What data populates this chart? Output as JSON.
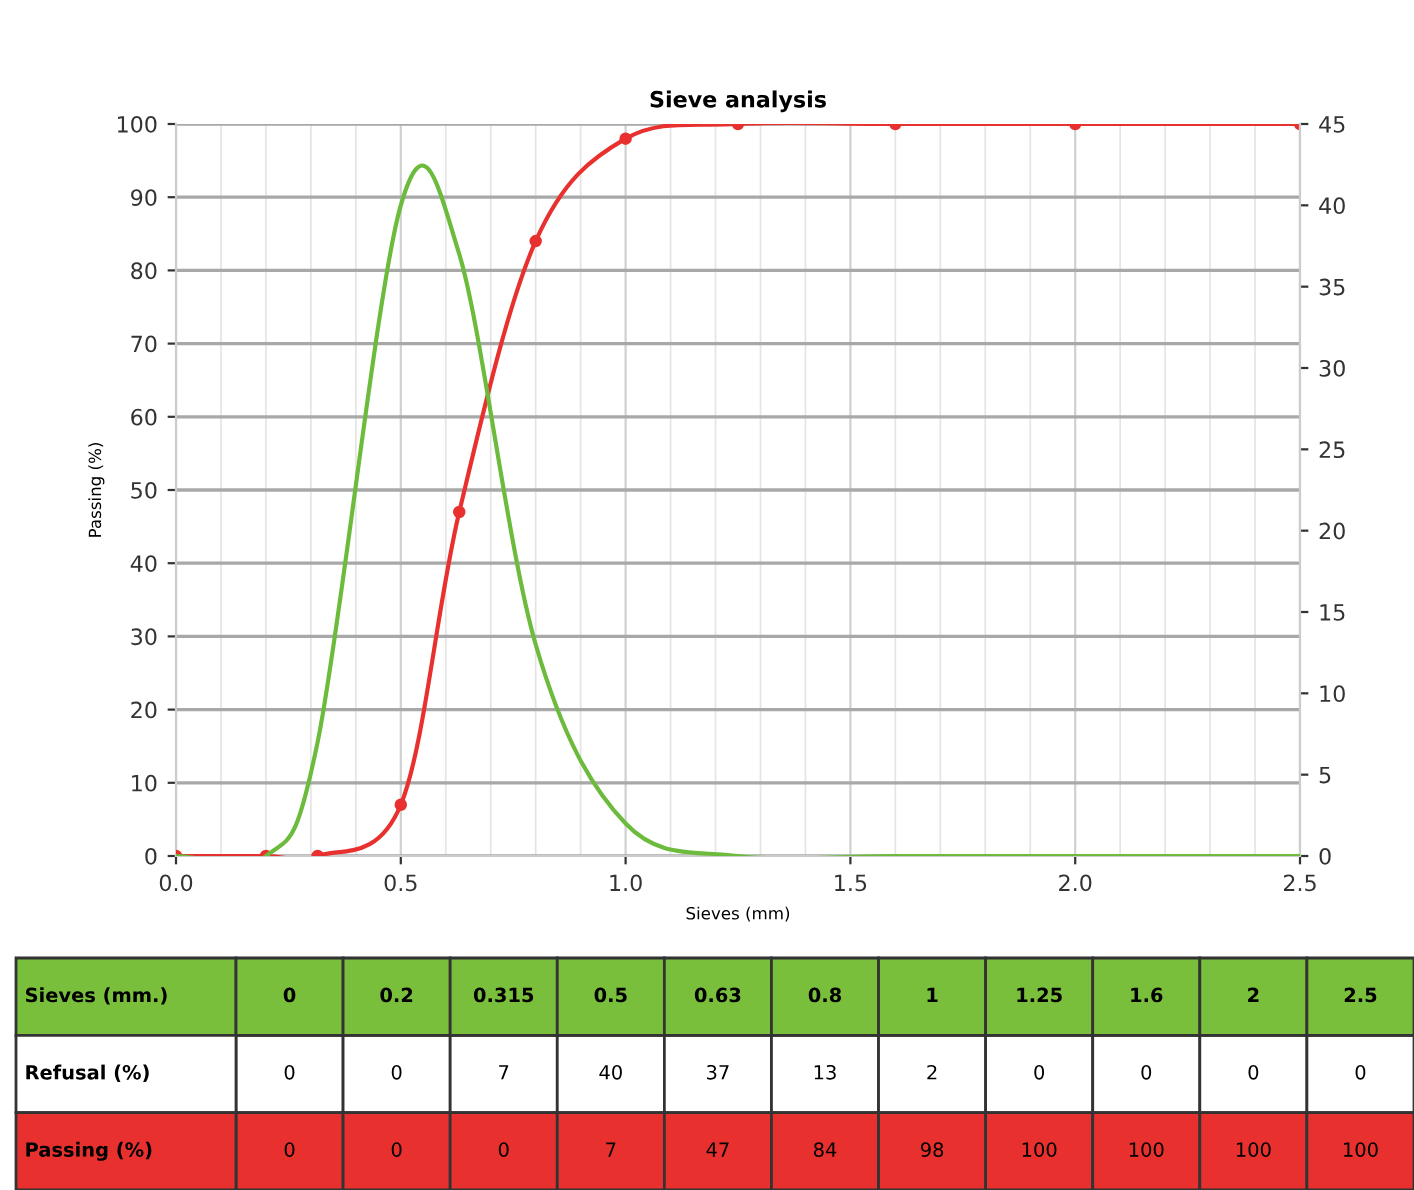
{
  "chart_data": [
    {
      "type": "line",
      "title": "Sieve analysis",
      "xlabel": "Sieves (mm)",
      "ylabel": "Passing (%)",
      "x": [
        0,
        0.2,
        0.315,
        0.5,
        0.63,
        0.8,
        1,
        1.25,
        1.6,
        2,
        2.5
      ],
      "series": [
        {
          "color": "#6cbb3c",
          "axis": "y2",
          "marker": "none",
          "values": [
            0,
            0,
            7,
            40,
            37,
            13,
            2,
            0,
            0,
            0,
            0
          ]
        },
        {
          "color": "#e8312f",
          "marker": "circle",
          "values": [
            0,
            0,
            0,
            7,
            47,
            84,
            98,
            100,
            100,
            100,
            100
          ]
        }
      ],
      "xlim": [
        0,
        2.5
      ],
      "xticks": [
        {
          "value": 0,
          "label": "0.0"
        },
        0.5,
        {
          "value": 1,
          "label": "1.0"
        },
        1.5,
        {
          "value": 2,
          "label": "2.0"
        },
        2.5
      ],
      "ylim": [
        0,
        100
      ],
      "yticks": [
        0,
        10,
        20,
        30,
        40,
        50,
        60,
        70,
        80,
        90,
        100
      ],
      "y2lim": [
        0,
        45
      ],
      "y2ticks": [
        0,
        5,
        10,
        15,
        20,
        25,
        30,
        35,
        40,
        45
      ],
      "grid": true,
      "line_style": "solid"
    },
    {
      "type": "heatmap",
      "xlabel": "Sieves (mm.)",
      "data_labels": true,
      "categories": [
        "0",
        "0.2",
        "0.315",
        "0.5",
        "0.63",
        "0.8",
        "1",
        "1.25",
        "1.6",
        "2",
        "2.5"
      ],
      "y_categories": [
        "Refusal (%)",
        "Passing (%)"
      ],
      "colors": [
        "#7abf3c",
        "#ffffff",
        "#e8312f"
      ],
      "cells": [
        [
          0,
          0,
          7,
          40,
          37,
          13,
          2,
          0,
          0,
          0,
          0
        ],
        [
          0,
          0,
          0,
          7,
          47,
          84,
          98,
          100,
          100,
          100,
          100
        ]
      ]
    }
  ]
}
